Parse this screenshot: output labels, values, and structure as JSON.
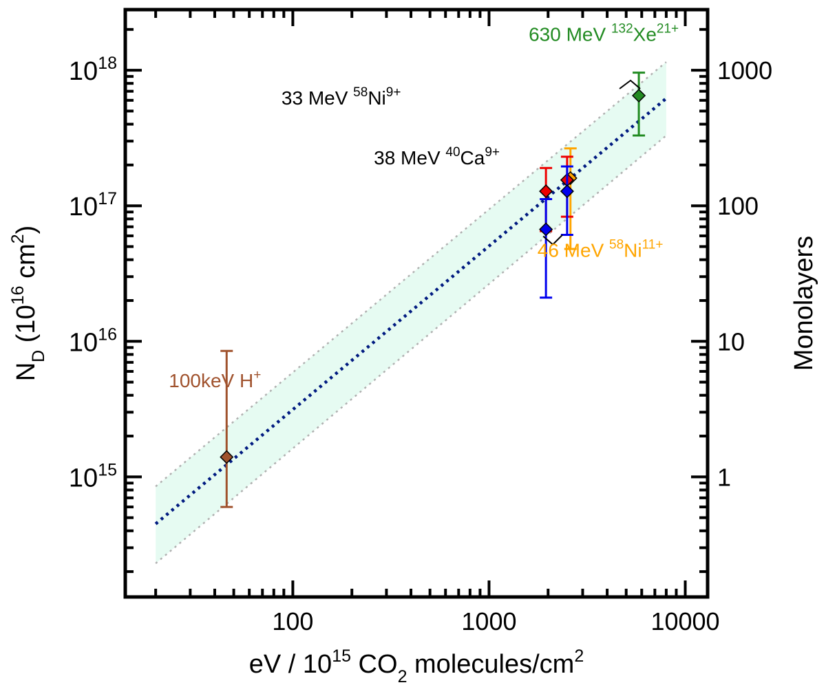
{
  "chart_data": {
    "type": "scatter",
    "xlabel": {
      "main": "eV / 10",
      "sup": "15",
      "mid": " CO",
      "sub": "2",
      "end": " molecules/cm",
      "sup2": "2"
    },
    "ylabel": {
      "main": "N",
      "sub": "D",
      "paren_open": " (10",
      "sup": "16",
      "paren_mid": " cm",
      "sup2": "2",
      "paren_close": ")"
    },
    "ylabel_right": "Monolayers",
    "x_scale": "log",
    "y_scale": "log",
    "xlim": [
      14,
      13000
    ],
    "ylim": [
      130000000000000.0,
      2.8e+18
    ],
    "y2_scale": "log",
    "y2_per_y_unit": 1000000000000000.0,
    "x_ticks": [
      {
        "value": 100,
        "label": "100"
      },
      {
        "value": 1000,
        "label": "1000"
      },
      {
        "value": 10000,
        "label": "10000"
      }
    ],
    "y_ticks": [
      {
        "value": 1000000000000000.0,
        "base": "10",
        "exp": "15"
      },
      {
        "value": 1e+16,
        "base": "10",
        "exp": "16"
      },
      {
        "value": 1e+17,
        "base": "10",
        "exp": "17"
      },
      {
        "value": 1e+18,
        "base": "10",
        "exp": "18"
      }
    ],
    "y2_ticks": [
      {
        "value": 1,
        "label": "1"
      },
      {
        "value": 10,
        "label": "10"
      },
      {
        "value": 100,
        "label": "100"
      },
      {
        "value": 1000,
        "label": "1000"
      }
    ],
    "fit_line": {
      "x": [
        20,
        8000
      ],
      "y": [
        450000000000000.0,
        6.2e+17
      ],
      "color": "#001a80"
    },
    "band": {
      "upper": [
        850000000000000.0,
        1.15e+18
      ],
      "lower": [
        230000000000000.0,
        3.3e+17
      ],
      "fill": "#e6fbf2",
      "edge": "#b0b0b0"
    },
    "series": [
      {
        "name": "100keV H+",
        "x": 46,
        "y": 1400000000000000.0,
        "err": [
          600000000000000.0,
          8500000000000000.0
        ],
        "color": "#a0522d"
      },
      {
        "name": "38 MeV 40Ca9+ (a)",
        "x": 1950,
        "y": 1.28e+17,
        "err": [
          6.5e+16,
          1.9e+17
        ],
        "color": "#ee0000"
      },
      {
        "name": "38 MeV 40Ca9+ (b)",
        "x": 1950,
        "y": 6.7e+16,
        "err": [
          2.1e+16,
          1.12e+17
        ],
        "color": "#0000ee"
      },
      {
        "name": "46 MeV 58Ni11+",
        "x": 2600,
        "y": 1.6e+17,
        "err": [
          4.8e+16,
          2.65e+17
        ],
        "color": "#ffa500"
      },
      {
        "name": "33 MeV 58Ni9+ (a)",
        "x": 2500,
        "y": 1.55e+17,
        "err": [
          8.3e+16,
          2.3e+17
        ],
        "color": "#ee0000"
      },
      {
        "name": "33 MeV 58Ni9+ (b)",
        "x": 2500,
        "y": 1.28e+17,
        "err": [
          6.1e+16,
          1.95e+17
        ],
        "color": "#0000ee"
      },
      {
        "name": "630 MeV 132Xe21+",
        "x": 5800,
        "y": 6.5e+17,
        "err": [
          3.3e+17,
          9.6e+17
        ],
        "color": "#228b22"
      }
    ],
    "annotations": [
      {
        "id": "h",
        "parts": [
          {
            "t": "100keV H"
          },
          {
            "t": "+",
            "sup": true
          }
        ],
        "color": "#a0522d"
      },
      {
        "id": "ca",
        "parts": [
          {
            "t": "38 MeV "
          },
          {
            "t": "40",
            "sup": true
          },
          {
            "t": "Ca"
          },
          {
            "t": "9+",
            "sup": true
          }
        ],
        "color": "#000000"
      },
      {
        "id": "ni9",
        "parts": [
          {
            "t": "33 MeV "
          },
          {
            "t": "58",
            "sup": true
          },
          {
            "t": "Ni"
          },
          {
            "t": "9+",
            "sup": true
          }
        ],
        "color": "#000000"
      },
      {
        "id": "ni11",
        "parts": [
          {
            "t": "46 MeV "
          },
          {
            "t": "58",
            "sup": true
          },
          {
            "t": "Ni"
          },
          {
            "t": "11+",
            "sup": true
          }
        ],
        "color": "#ffa500"
      },
      {
        "id": "xe",
        "parts": [
          {
            "t": "630 MeV "
          },
          {
            "t": "132",
            "sup": true
          },
          {
            "t": "Xe"
          },
          {
            "t": "21+",
            "sup": true
          }
        ],
        "color": "#228b22"
      }
    ],
    "grid": false,
    "legend": "none"
  }
}
